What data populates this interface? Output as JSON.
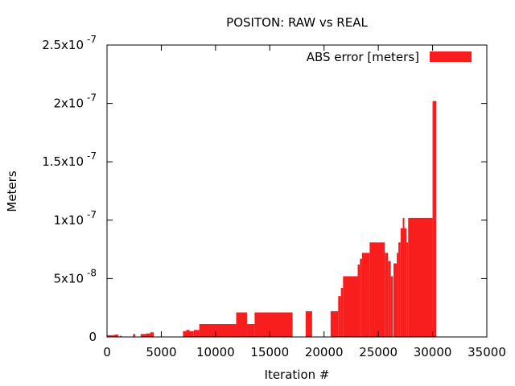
{
  "chart_data": {
    "type": "area",
    "title": "POSITON: RAW vs REAL",
    "xlabel": "Iteration #",
    "ylabel": "Meters",
    "xlim": [
      0,
      35000
    ],
    "ylim": [
      0,
      2.5e-07
    ],
    "x_ticks": [
      0,
      5000,
      10000,
      15000,
      20000,
      25000,
      30000,
      35000
    ],
    "x_tick_labels": [
      "0",
      "5000",
      "10000",
      "15000",
      "20000",
      "25000",
      "30000",
      "35000"
    ],
    "y_ticks": [
      0,
      5e-08,
      1e-07,
      1.5e-07,
      2e-07,
      2.5e-07
    ],
    "y_tick_labels": [
      {
        "base": "0",
        "exp": ""
      },
      {
        "base": "5x10",
        "exp": "-8"
      },
      {
        "base": "1x10",
        "exp": "-7"
      },
      {
        "base": "1.5x10",
        "exp": "-7"
      },
      {
        "base": "2x10",
        "exp": "-7"
      },
      {
        "base": "2.5x10",
        "exp": "-7"
      }
    ],
    "legend_position": "top-right",
    "grid": false,
    "series": [
      {
        "name": "ABS error [meters]",
        "color": "#f81e1e",
        "segments": [
          {
            "x0": 0,
            "x1": 650,
            "y": 1.5e-09
          },
          {
            "x0": 650,
            "x1": 1050,
            "y": 2e-09
          },
          {
            "x0": 1200,
            "x1": 1350,
            "y": 1e-09
          },
          {
            "x0": 2400,
            "x1": 2600,
            "y": 2.5e-09
          },
          {
            "x0": 3100,
            "x1": 3600,
            "y": 2.5e-09
          },
          {
            "x0": 3600,
            "x1": 4000,
            "y": 3e-09
          },
          {
            "x0": 4000,
            "x1": 4300,
            "y": 4e-09
          },
          {
            "x0": 7000,
            "x1": 7300,
            "y": 5e-09
          },
          {
            "x0": 7300,
            "x1": 7600,
            "y": 6e-09
          },
          {
            "x0": 7600,
            "x1": 8000,
            "y": 5e-09
          },
          {
            "x0": 8000,
            "x1": 8500,
            "y": 6e-09
          },
          {
            "x0": 8500,
            "x1": 11900,
            "y": 1.1e-08
          },
          {
            "x0": 11900,
            "x1": 12900,
            "y": 2.1e-08
          },
          {
            "x0": 12900,
            "x1": 13600,
            "y": 1.1e-08
          },
          {
            "x0": 13600,
            "x1": 17100,
            "y": 2.1e-08
          },
          {
            "x0": 18300,
            "x1": 18900,
            "y": 2.2e-08
          },
          {
            "x0": 20600,
            "x1": 21300,
            "y": 2.2e-08
          },
          {
            "x0": 21300,
            "x1": 21550,
            "y": 3.5e-08
          },
          {
            "x0": 21550,
            "x1": 21750,
            "y": 4.2e-08
          },
          {
            "x0": 21750,
            "x1": 23100,
            "y": 5.2e-08
          },
          {
            "x0": 23100,
            "x1": 23300,
            "y": 6.2e-08
          },
          {
            "x0": 23300,
            "x1": 23500,
            "y": 6.7e-08
          },
          {
            "x0": 23500,
            "x1": 24200,
            "y": 7.2e-08
          },
          {
            "x0": 24200,
            "x1": 25600,
            "y": 8.1e-08
          },
          {
            "x0": 25600,
            "x1": 25900,
            "y": 7.2e-08
          },
          {
            "x0": 25900,
            "x1": 26150,
            "y": 6.5e-08
          },
          {
            "x0": 26150,
            "x1": 26350,
            "y": 5.2e-08
          },
          {
            "x0": 26400,
            "x1": 26700,
            "y": 6.3e-08
          },
          {
            "x0": 26700,
            "x1": 26850,
            "y": 7.2e-08
          },
          {
            "x0": 26850,
            "x1": 27050,
            "y": 8.1e-08
          },
          {
            "x0": 27050,
            "x1": 27250,
            "y": 9.3e-08
          },
          {
            "x0": 27250,
            "x1": 27400,
            "y": 1.02e-07
          },
          {
            "x0": 27400,
            "x1": 27600,
            "y": 9.3e-08
          },
          {
            "x0": 27600,
            "x1": 27750,
            "y": 8.1e-08
          },
          {
            "x0": 27750,
            "x1": 30000,
            "y": 1.02e-07
          },
          {
            "x0": 30000,
            "x1": 30350,
            "y": 2.02e-07
          }
        ]
      }
    ]
  }
}
